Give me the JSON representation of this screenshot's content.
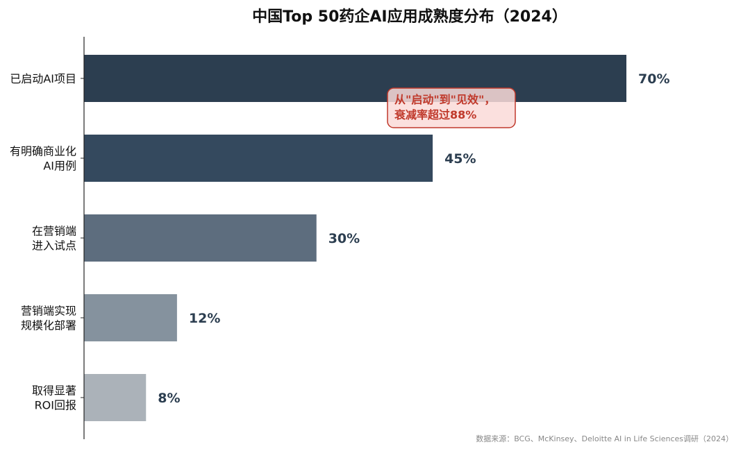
{
  "chart_data": {
    "type": "bar",
    "orientation": "horizontal",
    "title": "中国Top 50药企AI应用成熟度分布（2024）",
    "categories": [
      [
        "已启动AI项目"
      ],
      [
        "有明确商业化",
        "AI用例"
      ],
      [
        "在营销端",
        "进入试点"
      ],
      [
        "营销端实现",
        "规模化部署"
      ],
      [
        "取得显著",
        "ROI回报"
      ]
    ],
    "values": [
      70,
      45,
      30,
      12,
      8
    ],
    "value_labels": [
      "70%",
      "45%",
      "30%",
      "12%",
      "8%"
    ],
    "colors": [
      "#2c3e50",
      "#34495e",
      "#5d6d7e",
      "#85929e",
      "#abb2b9"
    ],
    "xlim": [
      0,
      80
    ],
    "grid": false,
    "annotation": {
      "lines": [
        "从\"启动\"到\"见效\"，",
        "衰减率超过88%"
      ],
      "text_color": "#c0392b",
      "border_color": "#c0392b",
      "fill_color": "#fadbd8"
    }
  },
  "source": "数据来源：BCG、McKinsey、Deloitte AI in Life Sciences调研（2024）"
}
